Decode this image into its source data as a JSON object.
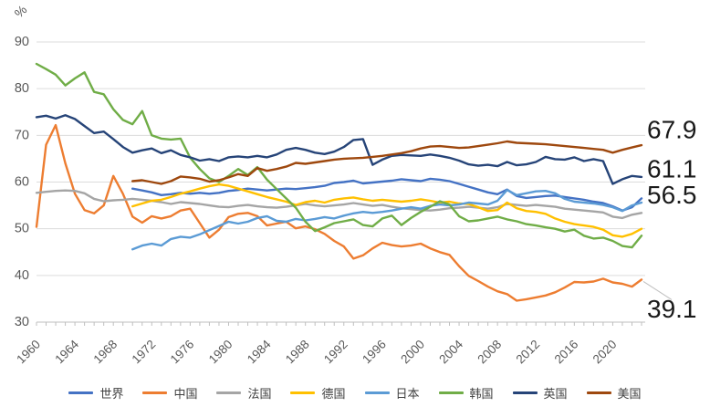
{
  "chart_data": {
    "type": "line",
    "title": "",
    "unit_label": "%",
    "ylim": [
      30,
      90
    ],
    "yticks": [
      30,
      40,
      50,
      60,
      70,
      80,
      90
    ],
    "x_range": [
      1960,
      2023
    ],
    "xticks": [
      1960,
      1964,
      1968,
      1972,
      1976,
      1980,
      1984,
      1988,
      1992,
      1996,
      2000,
      2004,
      2008,
      2012,
      2016,
      2020
    ],
    "grid": "horizontal",
    "legend_position": "bottom",
    "colors": {
      "grid": "#DCDCDC",
      "axis": "#BFBFBF",
      "tick_text": "#595959",
      "end_label_text": "#1a1a1a",
      "leader_line": "#BFBFBF"
    },
    "series": [
      {
        "id": "world",
        "name": "世界",
        "color": "#4472C4",
        "start_year": 1970,
        "values": [
          58.6,
          58.2,
          57.8,
          57.2,
          57.4,
          57.7,
          57.5,
          57.7,
          57.5,
          57.7,
          58.1,
          58.3,
          58.6,
          58.4,
          58.2,
          58.4,
          58.6,
          58.5,
          58.7,
          58.9,
          59.2,
          59.8,
          60.0,
          60.3,
          59.7,
          59.9,
          60.1,
          60.3,
          60.6,
          60.4,
          60.2,
          60.7,
          60.5,
          60.2,
          59.6,
          59.0,
          58.4,
          57.8,
          57.4,
          58.4,
          57.0,
          56.6,
          56.8,
          57.0,
          57.1,
          56.8,
          56.5,
          56.2,
          55.8,
          55.5,
          54.8,
          53.9,
          54.6,
          56.5
        ],
        "end_label": {
          "text": "56.5",
          "dy": -4,
          "leader": false
        }
      },
      {
        "id": "china",
        "name": "中国",
        "color": "#ED7D31",
        "start_year": 1960,
        "values": [
          50.4,
          68.0,
          72.2,
          64.0,
          57.5,
          54.0,
          53.3,
          55.0,
          61.3,
          57.5,
          52.6,
          51.3,
          52.7,
          52.2,
          52.7,
          53.9,
          54.3,
          51.2,
          48.1,
          49.8,
          52.5,
          53.2,
          53.4,
          52.7,
          50.7,
          51.1,
          51.5,
          50.1,
          50.5,
          49.9,
          48.9,
          47.4,
          46.2,
          43.6,
          44.3,
          45.8,
          47.0,
          46.5,
          46.2,
          46.4,
          46.8,
          45.8,
          45.0,
          44.4,
          42.0,
          39.9,
          38.8,
          37.6,
          36.6,
          36.0,
          34.6,
          34.9,
          35.3,
          35.7,
          36.4,
          37.4,
          38.6,
          38.5,
          38.7,
          39.3,
          38.5,
          38.2,
          37.6,
          39.1
        ],
        "end_label": {
          "text": "39.1",
          "dy": 32,
          "leader": true
        }
      },
      {
        "id": "france",
        "name": "法国",
        "color": "#A5A5A5",
        "start_year": 1960,
        "values": [
          57.7,
          57.9,
          58.1,
          58.2,
          58.1,
          57.6,
          56.4,
          55.9,
          56.1,
          56.2,
          56.4,
          56.2,
          56.0,
          55.7,
          55.3,
          55.7,
          55.5,
          55.3,
          55.0,
          54.7,
          54.6,
          54.9,
          55.1,
          54.8,
          54.6,
          54.5,
          54.7,
          55.0,
          55.3,
          55.0,
          54.8,
          55.0,
          55.2,
          55.5,
          55.2,
          54.9,
          55.1,
          54.7,
          54.4,
          54.2,
          54.0,
          53.9,
          54.1,
          54.4,
          54.5,
          54.7,
          54.5,
          54.3,
          54.6,
          55.3,
          55.1,
          54.9,
          55.1,
          54.9,
          54.7,
          54.3,
          54.1,
          53.9,
          53.7,
          53.5,
          52.6,
          52.3,
          53.0,
          53.4
        ],
        "end_label": null
      },
      {
        "id": "germany",
        "name": "德国",
        "color": "#FFC000",
        "start_year": 1970,
        "values": [
          54.8,
          55.4,
          56.0,
          56.2,
          56.8,
          57.5,
          58.0,
          58.6,
          59.1,
          59.5,
          59.2,
          58.6,
          58.0,
          57.4,
          56.8,
          56.3,
          55.8,
          55.1,
          55.7,
          56.0,
          55.6,
          56.2,
          56.5,
          56.7,
          56.3,
          56.0,
          56.2,
          56.0,
          55.8,
          56.0,
          56.3,
          56.0,
          55.6,
          55.8,
          55.4,
          55.3,
          54.6,
          53.8,
          54.0,
          55.6,
          54.4,
          53.8,
          53.6,
          53.2,
          52.2,
          51.5,
          51.0,
          50.7,
          50.4,
          49.8,
          48.6,
          48.3,
          48.9,
          50.0
        ],
        "end_label": null
      },
      {
        "id": "japan",
        "name": "日本",
        "color": "#5B9BD5",
        "start_year": 1970,
        "values": [
          45.6,
          46.4,
          46.8,
          46.4,
          47.8,
          48.3,
          48.1,
          48.8,
          49.7,
          50.6,
          51.5,
          51.1,
          51.5,
          52.3,
          52.7,
          51.7,
          51.5,
          52.1,
          51.8,
          52.1,
          52.5,
          52.2,
          52.8,
          53.3,
          53.6,
          53.4,
          53.6,
          53.9,
          54.3,
          54.6,
          54.3,
          54.9,
          55.2,
          55.0,
          55.2,
          55.6,
          55.4,
          55.2,
          56.0,
          58.3,
          57.2,
          57.6,
          58.0,
          58.1,
          57.6,
          56.4,
          55.8,
          55.6,
          55.4,
          55.1,
          54.6,
          53.8,
          55.0,
          55.6
        ],
        "end_label": null
      },
      {
        "id": "korea",
        "name": "韩国",
        "color": "#70AD47",
        "start_year": 1960,
        "values": [
          85.3,
          84.2,
          83.0,
          80.7,
          82.2,
          83.5,
          79.3,
          78.8,
          75.6,
          73.3,
          72.4,
          75.2,
          70.0,
          69.3,
          69.1,
          69.3,
          65.2,
          62.8,
          60.8,
          60.0,
          61.3,
          62.8,
          61.5,
          63.2,
          60.5,
          58.5,
          56.5,
          54.5,
          51.5,
          49.5,
          50.3,
          51.2,
          51.6,
          52.0,
          50.8,
          50.5,
          52.2,
          52.8,
          50.8,
          52.3,
          53.6,
          54.7,
          55.9,
          55.2,
          52.7,
          51.6,
          51.8,
          52.2,
          52.6,
          52.0,
          51.6,
          51.0,
          50.7,
          50.3,
          50.0,
          49.4,
          49.8,
          48.5,
          47.9,
          48.1,
          47.4,
          46.3,
          46.0,
          48.5
        ],
        "end_label": null
      },
      {
        "id": "uk",
        "name": "英国",
        "color": "#264478",
        "start_year": 1960,
        "values": [
          73.9,
          74.2,
          73.6,
          74.3,
          73.5,
          72.0,
          70.5,
          70.8,
          69.2,
          67.5,
          66.3,
          66.8,
          67.2,
          66.2,
          66.8,
          65.8,
          65.3,
          64.6,
          64.9,
          64.5,
          65.3,
          65.5,
          65.3,
          65.6,
          65.3,
          65.9,
          66.9,
          67.3,
          66.9,
          66.3,
          66.0,
          66.5,
          67.5,
          69.0,
          69.2,
          63.7,
          64.8,
          65.6,
          65.8,
          65.7,
          65.6,
          65.9,
          65.6,
          65.2,
          64.6,
          63.8,
          63.5,
          63.7,
          63.4,
          64.3,
          63.6,
          63.8,
          64.3,
          65.4,
          64.9,
          64.8,
          65.3,
          64.5,
          64.9,
          64.5,
          59.6,
          60.6,
          61.3,
          61.1
        ],
        "end_label": {
          "text": "61.1",
          "dy": -9,
          "leader": false
        }
      },
      {
        "id": "usa",
        "name": "美国",
        "color": "#9E480E",
        "start_year": 1970,
        "values": [
          60.2,
          60.4,
          60.0,
          59.6,
          60.2,
          61.2,
          61.0,
          60.7,
          60.1,
          60.4,
          61.0,
          61.7,
          61.3,
          63.0,
          62.4,
          62.8,
          63.3,
          64.1,
          63.9,
          64.2,
          64.5,
          64.8,
          65.0,
          65.1,
          65.2,
          65.4,
          65.6,
          65.9,
          66.2,
          66.6,
          67.2,
          67.6,
          67.7,
          67.5,
          67.3,
          67.4,
          67.7,
          68.0,
          68.3,
          68.7,
          68.4,
          68.3,
          68.2,
          68.1,
          67.9,
          67.7,
          67.5,
          67.3,
          67.1,
          66.9,
          66.3,
          66.9,
          67.4,
          67.9
        ],
        "end_label": {
          "text": "67.9",
          "dy": -17,
          "leader": false
        }
      }
    ]
  }
}
